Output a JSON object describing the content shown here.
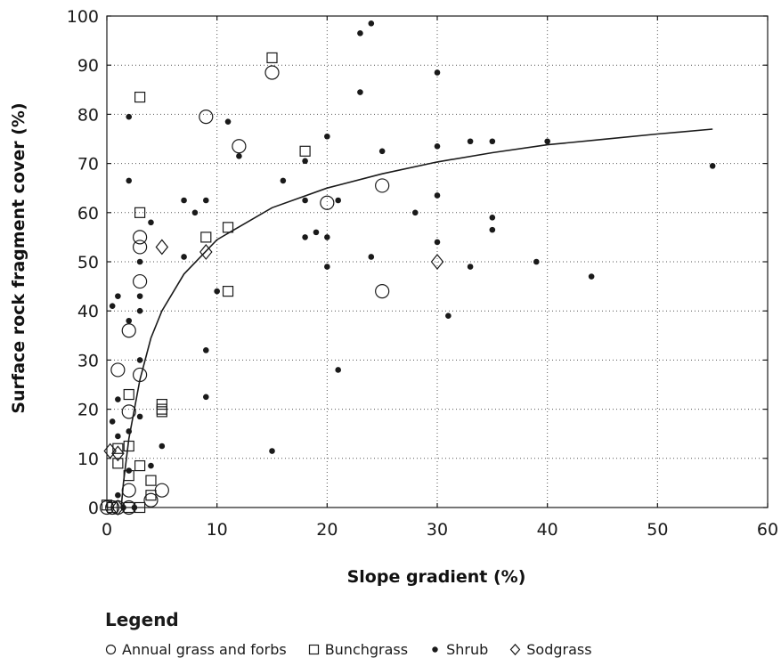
{
  "chart_data": {
    "type": "scatter",
    "xlabel": "Slope gradient (%)",
    "ylabel": "Surface rock fragment cover (%)",
    "xlim": [
      0,
      60
    ],
    "ylim": [
      0,
      100
    ],
    "xticks": [
      0,
      10,
      20,
      30,
      40,
      50,
      60
    ],
    "yticks": [
      0,
      10,
      20,
      30,
      40,
      50,
      60,
      70,
      80,
      90,
      100
    ],
    "grid": "dotted",
    "legend_title": "Legend",
    "legend_position": "bottom",
    "series": [
      {
        "name": "Annual grass and forbs",
        "marker": "circle-open",
        "points": [
          [
            0,
            0
          ],
          [
            0.5,
            0
          ],
          [
            1,
            0
          ],
          [
            2,
            0
          ],
          [
            1,
            28
          ],
          [
            2,
            19.5
          ],
          [
            2,
            36
          ],
          [
            2,
            3.5
          ],
          [
            3,
            27
          ],
          [
            3,
            46
          ],
          [
            3,
            53
          ],
          [
            3,
            55
          ],
          [
            4,
            1.5
          ],
          [
            5,
            3.5
          ],
          [
            9,
            79.5
          ],
          [
            12,
            73.5
          ],
          [
            15,
            88.5
          ],
          [
            20,
            62
          ],
          [
            25,
            65.5
          ],
          [
            25,
            44
          ]
        ]
      },
      {
        "name": "Bunchgrass",
        "marker": "square-open",
        "points": [
          [
            0,
            0.5
          ],
          [
            0.5,
            0
          ],
          [
            1,
            12
          ],
          [
            1,
            9
          ],
          [
            2,
            23
          ],
          [
            2,
            12.5
          ],
          [
            2,
            6.5
          ],
          [
            2,
            0
          ],
          [
            3,
            83.5
          ],
          [
            3,
            60
          ],
          [
            3,
            8.5
          ],
          [
            3,
            0
          ],
          [
            4,
            5.5
          ],
          [
            4,
            2.5
          ],
          [
            5,
            21
          ],
          [
            5,
            20
          ],
          [
            5,
            19.5
          ],
          [
            9,
            55
          ],
          [
            11,
            57
          ],
          [
            11,
            44
          ],
          [
            15,
            91.5
          ],
          [
            18,
            72.5
          ]
        ]
      },
      {
        "name": "Shrub",
        "marker": "dot",
        "points": [
          [
            0.5,
            41
          ],
          [
            0.5,
            17.5
          ],
          [
            1,
            43
          ],
          [
            1,
            22
          ],
          [
            1,
            14.5
          ],
          [
            1,
            2.5
          ],
          [
            1.5,
            0
          ],
          [
            2,
            79.5
          ],
          [
            2,
            66.5
          ],
          [
            2,
            38
          ],
          [
            2,
            15.5
          ],
          [
            2,
            7.5
          ],
          [
            2.5,
            0
          ],
          [
            3,
            50
          ],
          [
            3,
            43
          ],
          [
            3,
            40
          ],
          [
            3,
            30
          ],
          [
            3,
            18.5
          ],
          [
            4,
            58
          ],
          [
            4,
            8.5
          ],
          [
            5,
            12.5
          ],
          [
            7,
            62.5
          ],
          [
            7,
            51
          ],
          [
            8,
            60
          ],
          [
            9,
            62.5
          ],
          [
            9,
            32
          ],
          [
            9,
            22.5
          ],
          [
            10,
            44
          ],
          [
            11,
            78.5
          ],
          [
            12,
            71.5
          ],
          [
            15,
            11.5
          ],
          [
            16,
            66.5
          ],
          [
            18,
            70.5
          ],
          [
            18,
            62.5
          ],
          [
            18,
            55
          ],
          [
            19,
            56
          ],
          [
            20,
            75.5
          ],
          [
            20,
            55
          ],
          [
            20,
            49
          ],
          [
            21,
            62.5
          ],
          [
            21,
            28
          ],
          [
            23,
            96.5
          ],
          [
            23,
            84.5
          ],
          [
            24,
            98.5
          ],
          [
            24,
            51
          ],
          [
            25,
            72.5
          ],
          [
            28,
            60
          ],
          [
            30,
            88.5
          ],
          [
            30,
            73.5
          ],
          [
            30,
            63.5
          ],
          [
            30,
            54
          ],
          [
            31,
            39
          ],
          [
            33,
            74.5
          ],
          [
            33,
            49
          ],
          [
            35,
            74.5
          ],
          [
            35,
            59
          ],
          [
            35,
            56.5
          ],
          [
            39,
            50
          ],
          [
            40,
            74.5
          ],
          [
            44,
            47
          ],
          [
            55,
            69.5
          ]
        ]
      },
      {
        "name": "Sodgrass",
        "marker": "diamond-open",
        "points": [
          [
            0.3,
            11.5
          ],
          [
            1,
            11
          ],
          [
            1,
            0
          ],
          [
            5,
            53
          ],
          [
            9,
            52
          ],
          [
            30,
            50
          ]
        ]
      }
    ],
    "trendline": {
      "type": "logarithmic",
      "x": [
        1.3,
        1.5,
        2,
        3,
        4,
        5,
        7,
        10,
        15,
        20,
        25,
        30,
        35,
        40,
        45,
        50,
        55
      ],
      "y": [
        0,
        5,
        14,
        26,
        34.5,
        40,
        47.5,
        54.5,
        61,
        65,
        67.9,
        70.3,
        72.2,
        73.8,
        74.9,
        76,
        77
      ]
    }
  }
}
